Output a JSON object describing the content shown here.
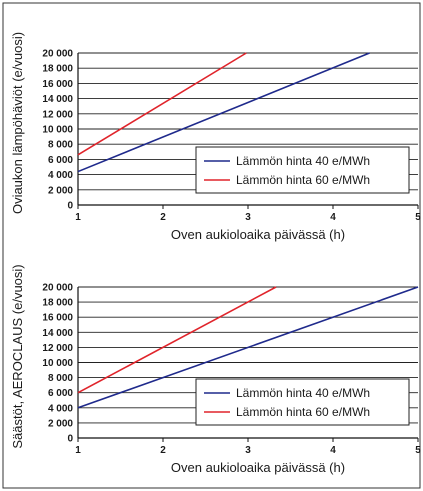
{
  "chart_data": [
    {
      "type": "line",
      "xlabel": "Oven aukioloaika päivässä (h)",
      "ylabel": "Oviaukon lämpöhäviöt (e/vuosi)",
      "xlim": [
        1,
        5
      ],
      "ylim": [
        0,
        20000
      ],
      "xticks": [
        "1",
        "2",
        "3",
        "4",
        "5"
      ],
      "yticks": [
        "0",
        "2 000",
        "4 000",
        "6 000",
        "8 000",
        "10 000",
        "12 000",
        "14 000",
        "16 000",
        "18 000",
        "20 000"
      ],
      "ytick_values": [
        0,
        2000,
        4000,
        6000,
        8000,
        10000,
        12000,
        14000,
        16000,
        18000,
        20000
      ],
      "grid": true,
      "legend_position": "bottom-right",
      "series": [
        {
          "name": "Lämmön hinta 40 e/MWh",
          "color": "#1f2a8c",
          "x": [
            1,
            4.43
          ],
          "y": [
            4400,
            20000
          ]
        },
        {
          "name": "Lämmön hinta 60 e/MWh",
          "color": "#e0242b",
          "x": [
            1,
            2.98
          ],
          "y": [
            6600,
            20000
          ]
        }
      ]
    },
    {
      "type": "line",
      "xlabel": "Oven aukioloaika päivässä (h)",
      "ylabel": "Säästöt, AEROCLAUS (e/vuosi)",
      "xlim": [
        1,
        5
      ],
      "ylim": [
        0,
        20000
      ],
      "xticks": [
        "1",
        "2",
        "3",
        "4",
        "5"
      ],
      "yticks": [
        "0",
        "2 000",
        "4 000",
        "6 000",
        "8 000",
        "10 000",
        "12 000",
        "14 000",
        "16 000",
        "18 000",
        "20 000"
      ],
      "ytick_values": [
        0,
        2000,
        4000,
        6000,
        8000,
        10000,
        12000,
        14000,
        16000,
        18000,
        20000
      ],
      "grid": true,
      "legend_position": "bottom-right",
      "series": [
        {
          "name": "Lämmön hinta 40 e/MWh",
          "color": "#1f2a8c",
          "x": [
            1,
            5
          ],
          "y": [
            4000,
            20000
          ]
        },
        {
          "name": "Lämmön hinta 60 e/MWh",
          "color": "#e0242b",
          "x": [
            1,
            3.33
          ],
          "y": [
            6000,
            20000
          ]
        }
      ]
    }
  ]
}
